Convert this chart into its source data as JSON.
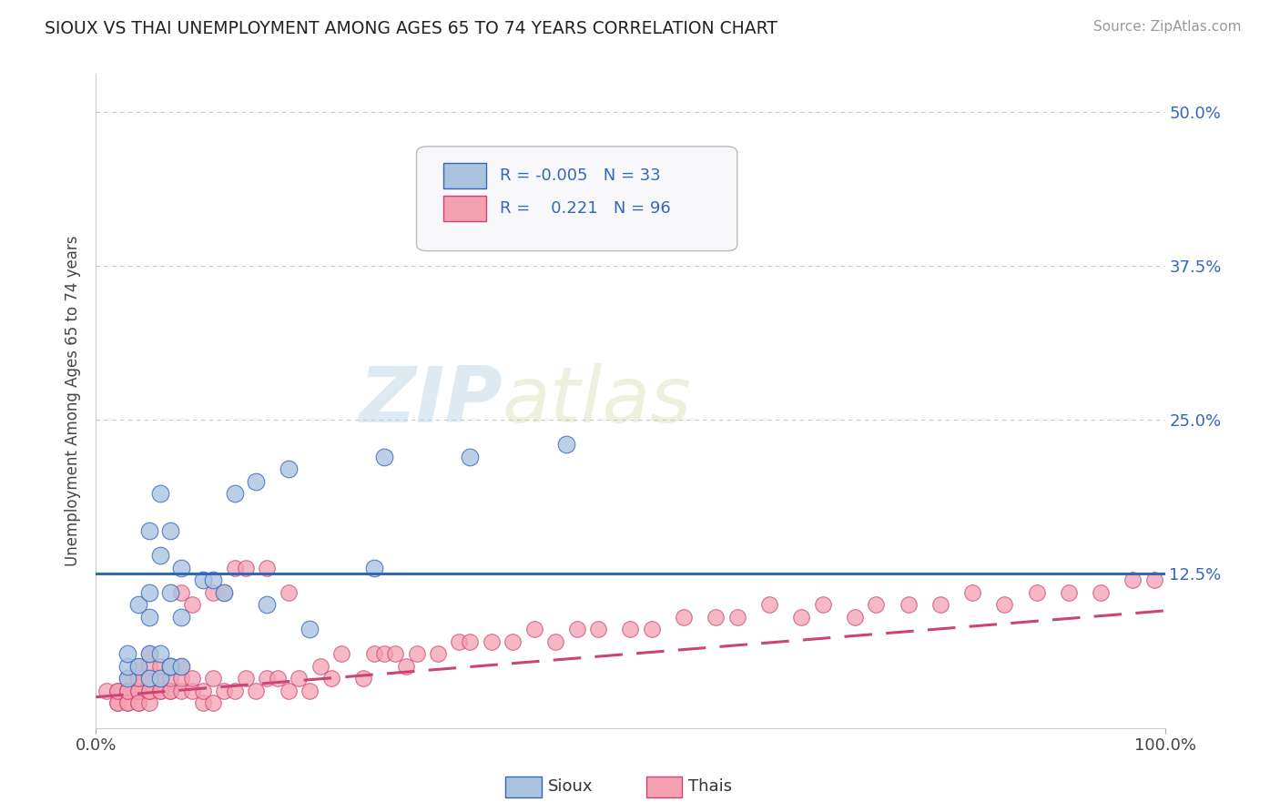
{
  "title": "SIOUX VS THAI UNEMPLOYMENT AMONG AGES 65 TO 74 YEARS CORRELATION CHART",
  "source_text": "Source: ZipAtlas.com",
  "ylabel": "Unemployment Among Ages 65 to 74 years",
  "xlim": [
    0,
    100
  ],
  "ylim": [
    0,
    53
  ],
  "yticks": [
    0,
    12.5,
    25.0,
    37.5,
    50.0
  ],
  "ytick_labels": [
    "",
    "12.5%",
    "25.0%",
    "37.5%",
    "50.0%"
  ],
  "xtick_labels": [
    "0.0%",
    "100.0%"
  ],
  "background_color": "#ffffff",
  "grid_color": "#c8c8c8",
  "sioux_color": "#aac4e0",
  "thais_color": "#f4a0b0",
  "sioux_line_color": "#3366bb",
  "thais_line_color": "#cc4477",
  "legend_R_sioux": "-0.005",
  "legend_N_sioux": "33",
  "legend_R_thais": "0.221",
  "legend_N_thais": "96",
  "watermark_zip": "ZIP",
  "watermark_atlas": "atlas",
  "sioux_trend_y0": 12.5,
  "sioux_trend_y1": 12.5,
  "thais_trend_y0": 2.5,
  "thais_trend_y1": 9.5,
  "sioux_x": [
    3,
    3,
    3,
    4,
    4,
    5,
    5,
    5,
    5,
    5,
    6,
    6,
    6,
    6,
    7,
    7,
    7,
    7,
    8,
    8,
    8,
    10,
    11,
    12,
    13,
    15,
    16,
    18,
    20,
    26,
    27,
    35,
    44
  ],
  "sioux_y": [
    4,
    5,
    6,
    5,
    10,
    4,
    11,
    16,
    9,
    6,
    4,
    6,
    14,
    19,
    5,
    11,
    5,
    16,
    5,
    9,
    13,
    12,
    12,
    11,
    19,
    20,
    10,
    21,
    8,
    13,
    22,
    22,
    23
  ],
  "thais_x": [
    1,
    2,
    2,
    2,
    2,
    3,
    3,
    3,
    3,
    3,
    3,
    4,
    4,
    4,
    4,
    4,
    4,
    4,
    5,
    5,
    5,
    5,
    5,
    5,
    5,
    6,
    6,
    6,
    6,
    7,
    7,
    7,
    7,
    8,
    8,
    8,
    8,
    9,
    9,
    9,
    10,
    10,
    11,
    11,
    11,
    12,
    12,
    13,
    13,
    14,
    14,
    15,
    16,
    16,
    17,
    18,
    18,
    19,
    20,
    21,
    22,
    23,
    25,
    26,
    27,
    28,
    29,
    30,
    32,
    34,
    35,
    37,
    39,
    41,
    43,
    45,
    47,
    50,
    52,
    55,
    58,
    60,
    63,
    66,
    68,
    71,
    73,
    76,
    79,
    82,
    85,
    88,
    91,
    94,
    97,
    99
  ],
  "thais_y": [
    3,
    2,
    3,
    2,
    3,
    2,
    3,
    3,
    2,
    4,
    3,
    2,
    3,
    3,
    4,
    4,
    2,
    5,
    2,
    3,
    3,
    4,
    4,
    5,
    6,
    3,
    3,
    4,
    5,
    3,
    3,
    4,
    5,
    3,
    4,
    5,
    11,
    3,
    4,
    10,
    2,
    3,
    2,
    11,
    4,
    3,
    11,
    3,
    13,
    4,
    13,
    3,
    4,
    13,
    4,
    3,
    11,
    4,
    3,
    5,
    4,
    6,
    4,
    6,
    6,
    6,
    5,
    6,
    6,
    7,
    7,
    7,
    7,
    8,
    7,
    8,
    8,
    8,
    8,
    9,
    9,
    9,
    10,
    9,
    10,
    9,
    10,
    10,
    10,
    11,
    10,
    11,
    11,
    11,
    12,
    12
  ]
}
